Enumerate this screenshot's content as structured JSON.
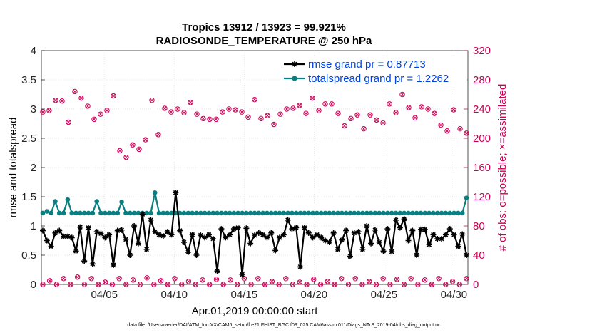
{
  "chart_data": {
    "type": "line",
    "title": "Tropics 13912 / 13923 = 99.921%",
    "subtitle": "RADIOSONDE_TEMPERATURE @ 250 hPa",
    "xlabel": "Apr.01,2019 00:00:00 start",
    "ylabel_left": "rmse and totalspread",
    "ylabel_right": "# of obs: o=possible; ×=assimilated",
    "footer": "data file: /Users/raeder/DAI/ATM_forcXX/CAM6_setup/f.e21.FHIST_BGC.f09_025.CAM6assim.011/Diags_NTrS_2019-04/obs_diag_output.nc",
    "xlim": [
      1,
      31.5
    ],
    "ylim_left": [
      0,
      4
    ],
    "ylim_right": [
      0,
      320
    ],
    "x_ticks": [
      {
        "label": "04/05",
        "value": 5.5
      },
      {
        "label": "04/10",
        "value": 10.5
      },
      {
        "label": "04/15",
        "value": 15.5
      },
      {
        "label": "04/20",
        "value": 20.5
      },
      {
        "label": "04/25",
        "value": 25.5
      },
      {
        "label": "04/30",
        "value": 30.5
      }
    ],
    "y_ticks_left": [
      "0",
      "0.5",
      "1",
      "1.5",
      "2",
      "2.5",
      "3",
      "3.5",
      "4"
    ],
    "y_ticks_right": [
      "0",
      "40",
      "80",
      "120",
      "160",
      "200",
      "240",
      "280",
      "320"
    ],
    "colors": {
      "rmse": "#000000",
      "spread": "#0b7f7f",
      "obs": "#cc0055",
      "legend_text": "#0044dd"
    },
    "series": [
      {
        "name": "rmse grand pr = 0.87713",
        "axis": "left",
        "values": [
          0.92,
          0.75,
          0.65,
          0.88,
          0.92,
          0.82,
          0.82,
          0.8,
          0.57,
          0.98,
          0.4,
          0.97,
          0.35,
          0.9,
          0.87,
          0.8,
          0.85,
          0.33,
          0.92,
          0.93,
          0.77,
          0.5,
          1.0,
          0.7,
          1.2,
          0.6,
          1.1,
          0.9,
          0.85,
          0.83,
          0.9,
          0.85,
          1.57,
          0.92,
          0.72,
          0.55,
          0.85,
          0.5,
          0.84,
          0.8,
          0.85,
          0.78,
          0.23,
          0.95,
          0.8,
          0.85,
          0.95,
          0.97,
          0.17,
          0.96,
          0.7,
          0.84,
          0.88,
          0.85,
          0.8,
          0.88,
          0.58,
          0.8,
          0.85,
          1.1,
          0.95,
          0.97,
          0.3,
          0.97,
          0.88,
          0.8,
          0.85,
          0.8,
          0.75,
          0.72,
          0.88,
          0.6,
          0.76,
          0.92,
          0.48,
          0.88,
          0.9,
          0.6,
          1.0,
          0.7,
          0.93,
          0.72,
          0.57,
          0.95,
          0.56,
          1.1,
          0.97,
          1.12,
          0.75,
          0.92,
          0.5,
          0.94,
          0.94,
          0.68,
          0.85,
          0.78,
          0.78,
          0.85,
          0.95,
          0.85,
          0.65,
          0.86,
          0.5
        ]
      },
      {
        "name": "totalspread grand pr = 1.2262",
        "axis": "left",
        "values": [
          1.22,
          1.25,
          1.22,
          1.42,
          1.22,
          1.22,
          1.45,
          1.22,
          1.22,
          1.22,
          1.22,
          1.22,
          1.22,
          1.42,
          1.22,
          1.22,
          1.22,
          1.22,
          1.22,
          1.41,
          1.22,
          1.22,
          1.22,
          1.22,
          1.22,
          1.22,
          1.22,
          1.57,
          1.22,
          1.22,
          1.22,
          1.22,
          1.22,
          1.22,
          1.22,
          1.22,
          1.22,
          1.22,
          1.22,
          1.22,
          1.22,
          1.22,
          1.22,
          1.22,
          1.22,
          1.22,
          1.22,
          1.22,
          1.22,
          1.22,
          1.22,
          1.22,
          1.22,
          1.22,
          1.22,
          1.22,
          1.22,
          1.22,
          1.22,
          1.22,
          1.22,
          1.22,
          1.22,
          1.22,
          1.22,
          1.22,
          1.22,
          1.22,
          1.22,
          1.22,
          1.22,
          1.22,
          1.22,
          1.22,
          1.22,
          1.22,
          1.22,
          1.22,
          1.22,
          1.22,
          1.22,
          1.22,
          1.22,
          1.22,
          1.22,
          1.22,
          1.22,
          1.22,
          1.22,
          1.22,
          1.22,
          1.22,
          1.22,
          1.22,
          1.22,
          1.22,
          1.22,
          1.22,
          1.22,
          1.22,
          1.22,
          1.22,
          1.48
        ]
      },
      {
        "name": "obs possible (upper)",
        "axis": "right",
        "values": [
          236,
          238,
          252,
          251,
          222,
          264,
          255,
          244,
          226,
          233,
          238,
          258,
          183,
          174,
          191,
          185,
          198,
          252,
          205,
          241,
          236,
          240,
          235,
          249,
          233,
          227,
          226,
          226,
          236,
          240,
          239,
          236,
          229,
          253,
          227,
          231,
          219,
          233,
          240,
          241,
          245,
          234,
          255,
          238,
          247,
          247,
          234,
          217,
          227,
          232,
          213,
          232,
          225,
          221,
          247,
          235,
          260,
          242,
          228,
          243,
          240,
          234,
          218,
          210,
          239,
          213,
          207
        ]
      },
      {
        "name": "obs possible (lower)",
        "axis": "right",
        "values": [
          0,
          5,
          0,
          8,
          0,
          10,
          0,
          8,
          0,
          3,
          0,
          8,
          0,
          6,
          0,
          9,
          0,
          5,
          0,
          8,
          0,
          4,
          0,
          6,
          0,
          7,
          0,
          6,
          0,
          8,
          0,
          8,
          0,
          4,
          0,
          8,
          0,
          3,
          0,
          7,
          0,
          4,
          0,
          8,
          0,
          8,
          0,
          4,
          0,
          8,
          0,
          7,
          0,
          8,
          0,
          6,
          0,
          8,
          0,
          4,
          0,
          8
        ]
      }
    ]
  }
}
